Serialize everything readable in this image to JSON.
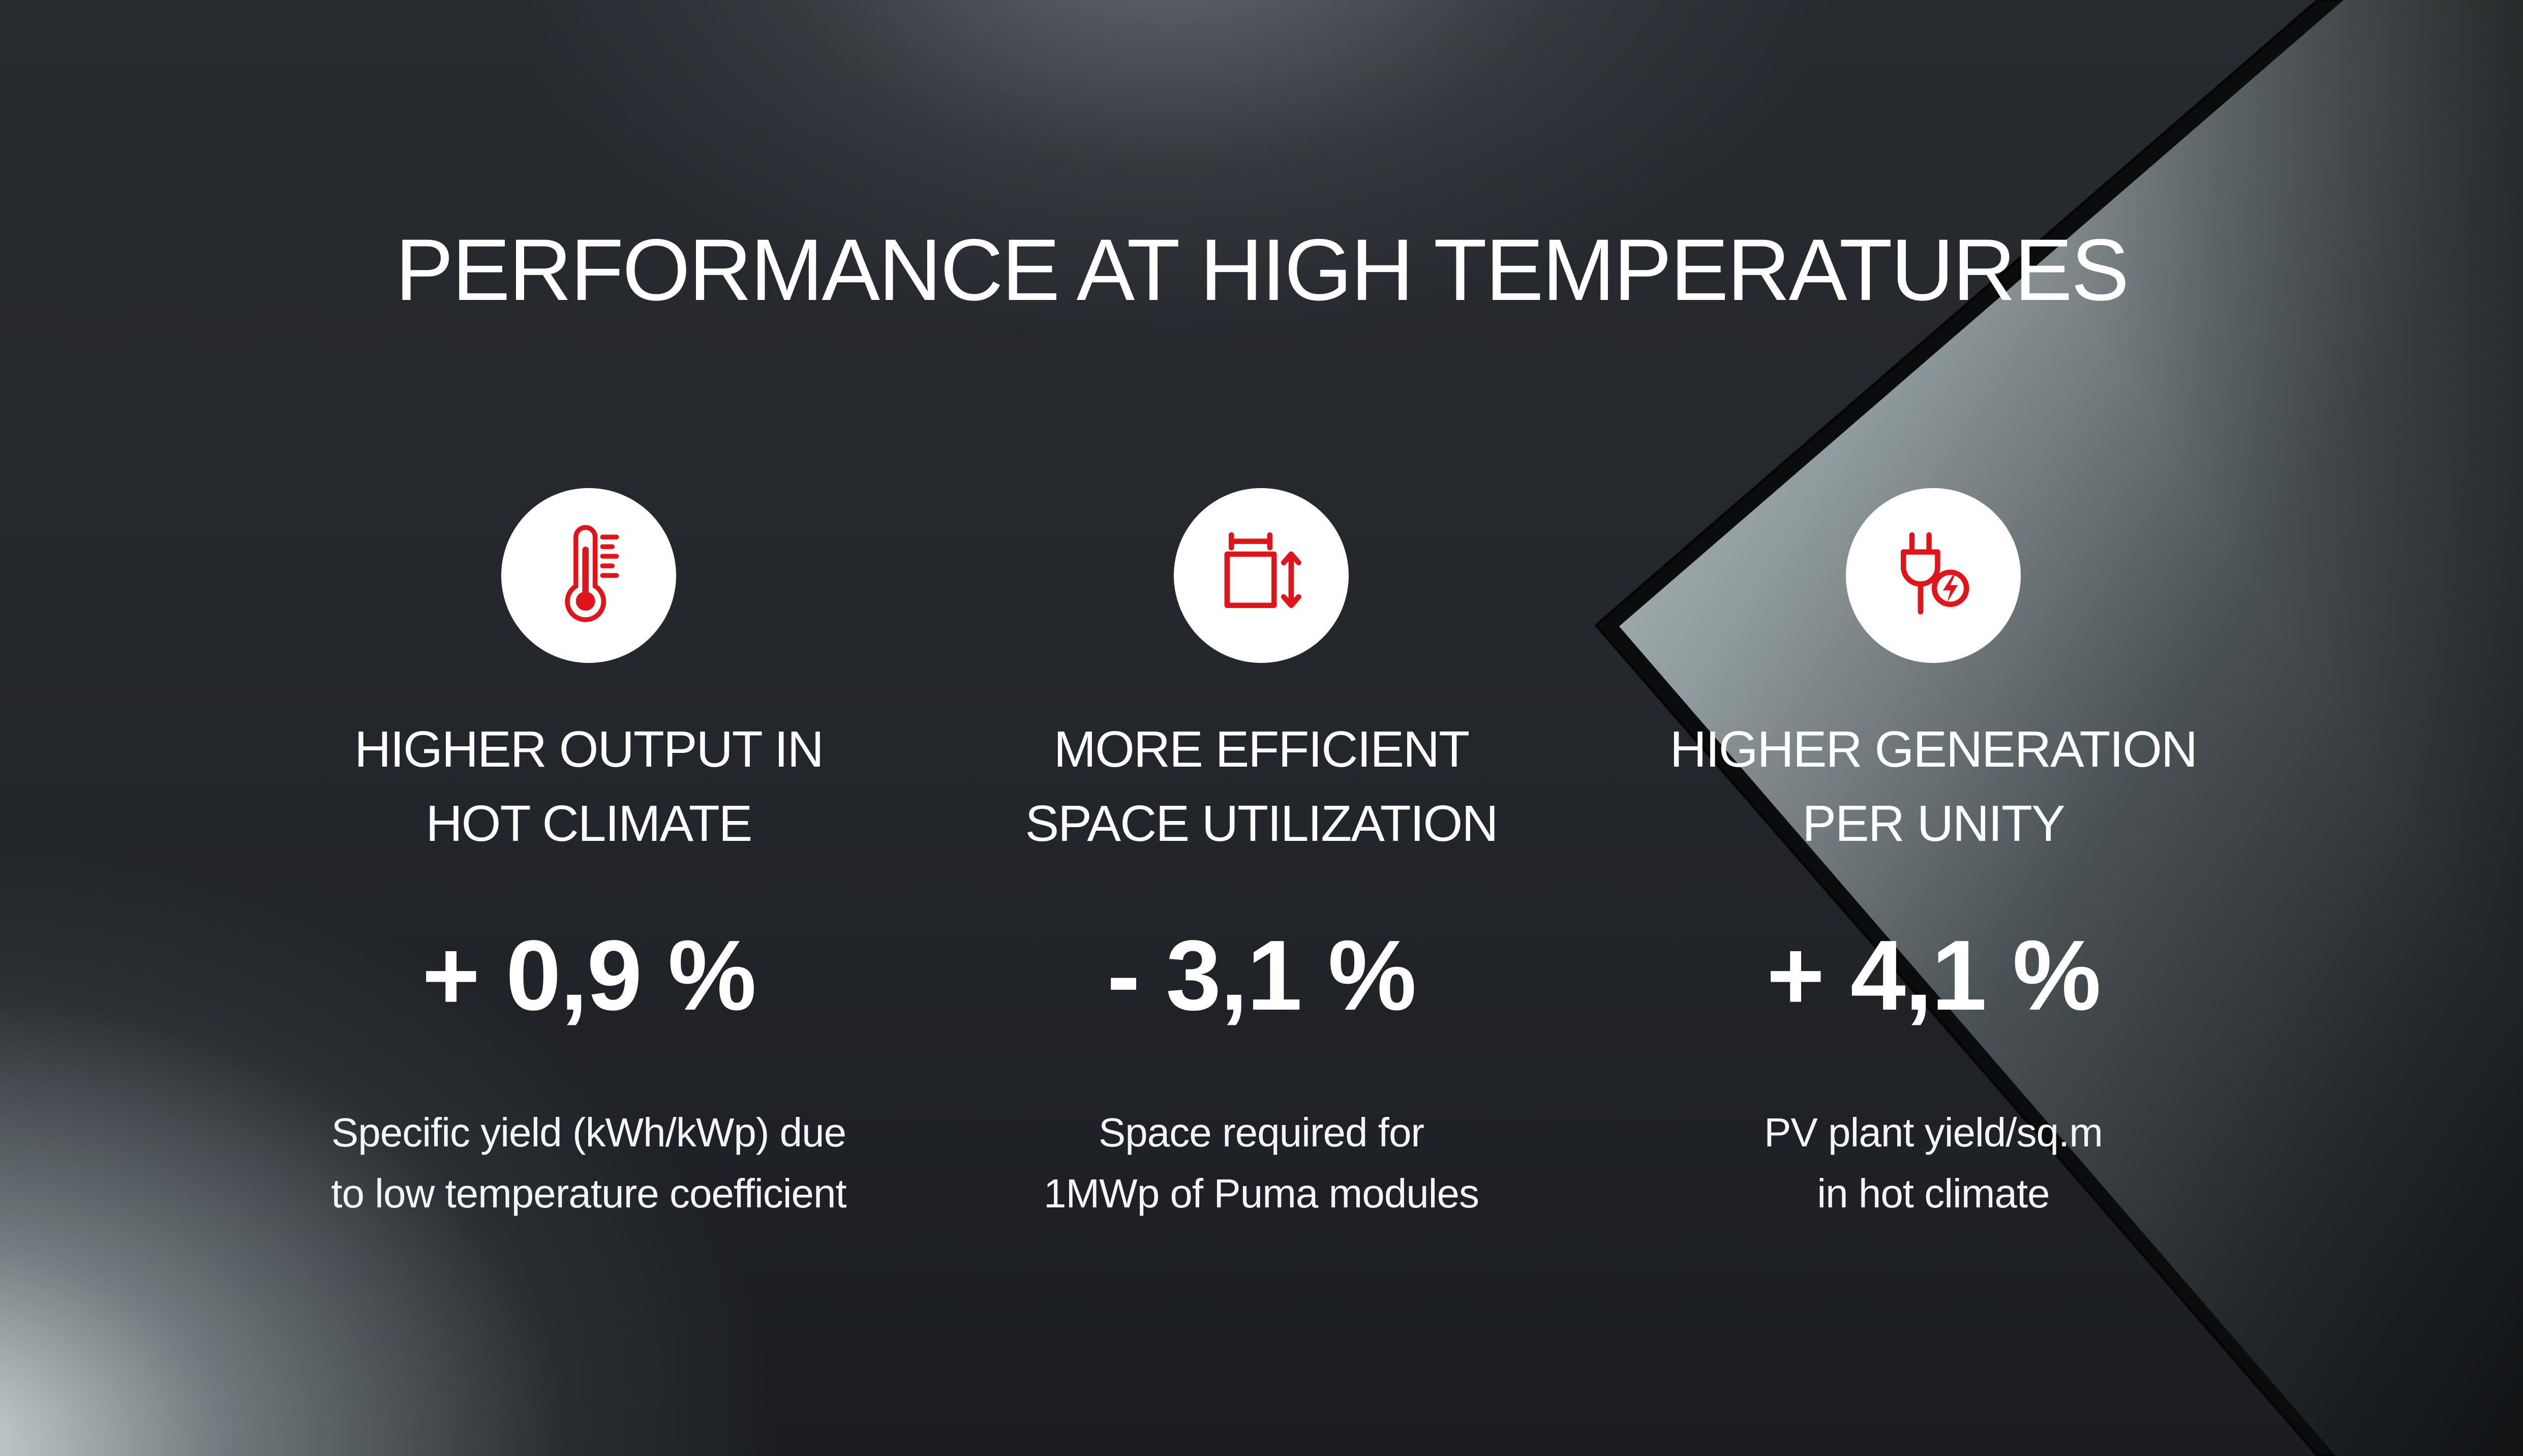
{
  "title": "PERFORMANCE AT HIGH TEMPERATURES",
  "accent_color": "#e2141b",
  "features": [
    {
      "icon": "thermometer-icon",
      "heading_lines": [
        "HIGHER OUTPUT IN",
        "HOT CLIMATE"
      ],
      "value": "+ 0,9 %",
      "description_lines": [
        "Specific yield (kWh/kWp) due",
        "to low temperature coefficient"
      ]
    },
    {
      "icon": "space-resize-icon",
      "heading_lines": [
        "MORE EFFICIENT",
        "SPACE UTILIZATION"
      ],
      "value": "- 3,1 %",
      "description_lines": [
        "Space required for",
        "1MWp of Puma modules"
      ]
    },
    {
      "icon": "energy-plug-icon",
      "heading_lines": [
        "HIGHER GENERATION",
        "PER UNITY"
      ],
      "value": "+ 4,1 %",
      "description_lines": [
        "PV plant yield/sq.m",
        "in hot climate"
      ]
    }
  ]
}
